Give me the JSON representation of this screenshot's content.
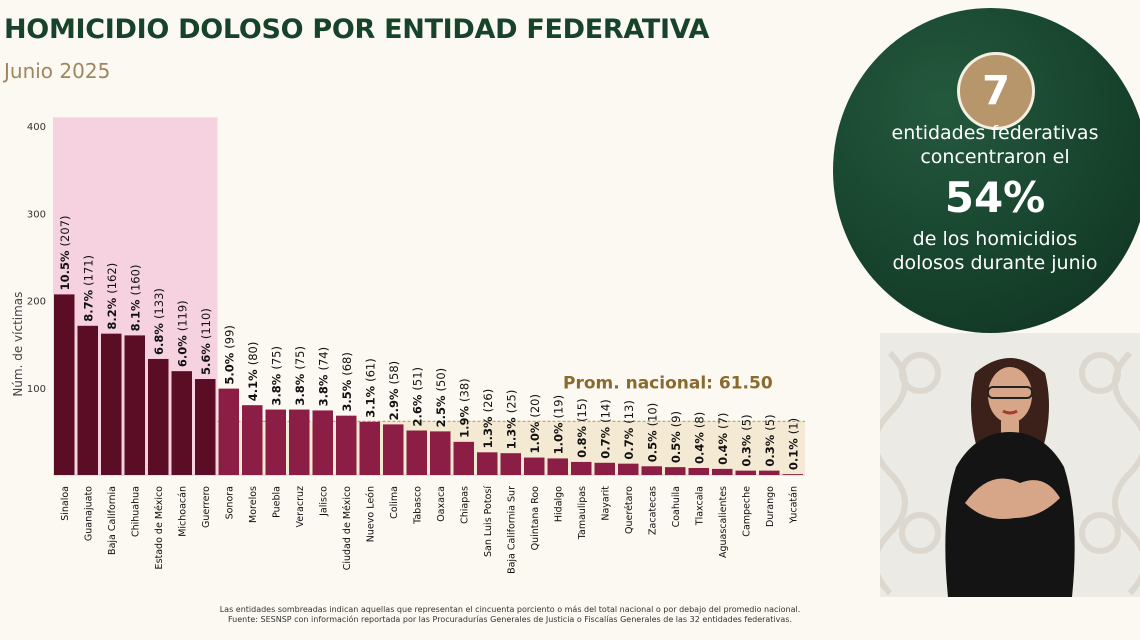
{
  "header": {
    "title": "HOMICIDIO DOLOSO POR ENTIDAD FEDERATIVA",
    "subtitle": "Junio 2025"
  },
  "highlight": {
    "number": "7",
    "line1": "entidades federativas",
    "line2": "concentraron el",
    "percent": "54%",
    "line3": "de los homicidios",
    "line4": "dolosos durante junio"
  },
  "footnote": {
    "line1": "Las entidades sombreadas indican aquellas que representan el cincuenta porciento o más del total nacional o por debajo del promedio nacional.",
    "line2": "Fuente: SESNSP con información reportada por las Procuradurías Generales de Justicia o Fiscalías Generales de las 32 entidades federativas."
  },
  "chart_data": {
    "type": "bar",
    "ylabel": "Núm. de víctimas",
    "ylim": [
      0,
      410
    ],
    "yticks": [
      100,
      200,
      300,
      400
    ],
    "categories": [
      "Sinaloa",
      "Guanajuato",
      "Baja California",
      "Chihuahua",
      "Estado de México",
      "Michoacán",
      "Guerrero",
      "Sonora",
      "Morelos",
      "Puebla",
      "Veracruz",
      "Jalisco",
      "Ciudad de México",
      "Nuevo León",
      "Colima",
      "Tabasco",
      "Oaxaca",
      "Chiapas",
      "San Luis Potosí",
      "Baja California Sur",
      "Quintana Roo",
      "Hidalgo",
      "Tamaulipas",
      "Nayarit",
      "Querétaro",
      "Zacatecas",
      "Coahuila",
      "Tlaxcala",
      "Aguascalientes",
      "Campeche",
      "Durango",
      "Yucatán"
    ],
    "values": [
      207,
      171,
      162,
      160,
      133,
      119,
      110,
      99,
      80,
      75,
      75,
      74,
      68,
      61,
      58,
      51,
      50,
      38,
      26,
      25,
      20,
      19,
      15,
      14,
      13,
      10,
      9,
      8,
      7,
      5,
      5,
      1
    ],
    "percent_labels": [
      "10.5%",
      "8.7%",
      "8.2%",
      "8.1%",
      "6.8%",
      "6.0%",
      "5.6%",
      "5.0%",
      "4.1%",
      "3.8%",
      "3.8%",
      "3.8%",
      "3.5%",
      "3.1%",
      "2.9%",
      "2.6%",
      "2.5%",
      "1.9%",
      "1.3%",
      "1.3%",
      "1.0%",
      "1.0%",
      "0.8%",
      "0.7%",
      "0.7%",
      "0.5%",
      "0.5%",
      "0.4%",
      "0.4%",
      "0.3%",
      "0.3%",
      "0.1%"
    ],
    "count_labels": [
      "(207)",
      "(171)",
      "(162)",
      "(160)",
      "(133)",
      "(119)",
      "(110)",
      "(99)",
      "(80)",
      "(75)",
      "(75)",
      "(74)",
      "(68)",
      "(61)",
      "(58)",
      "(51)",
      "(50)",
      "(38)",
      "(26)",
      "(25)",
      "(20)",
      "(19)",
      "(15)",
      "(14)",
      "(13)",
      "(10)",
      "(9)",
      "(8)",
      "(7)",
      "(5)",
      "(5)",
      "(1)"
    ],
    "average": {
      "value": 61.5,
      "label": "Prom. nacional: 61.50"
    },
    "highlighted_count": 7,
    "colors": {
      "highlighted_bar": "#5a0d25",
      "bar": "#8c1d45",
      "shade": "#f6d2e0",
      "average_shade": "#f4ead4",
      "average_line": "#c8a468",
      "average_text": "#8a6a2e"
    }
  }
}
